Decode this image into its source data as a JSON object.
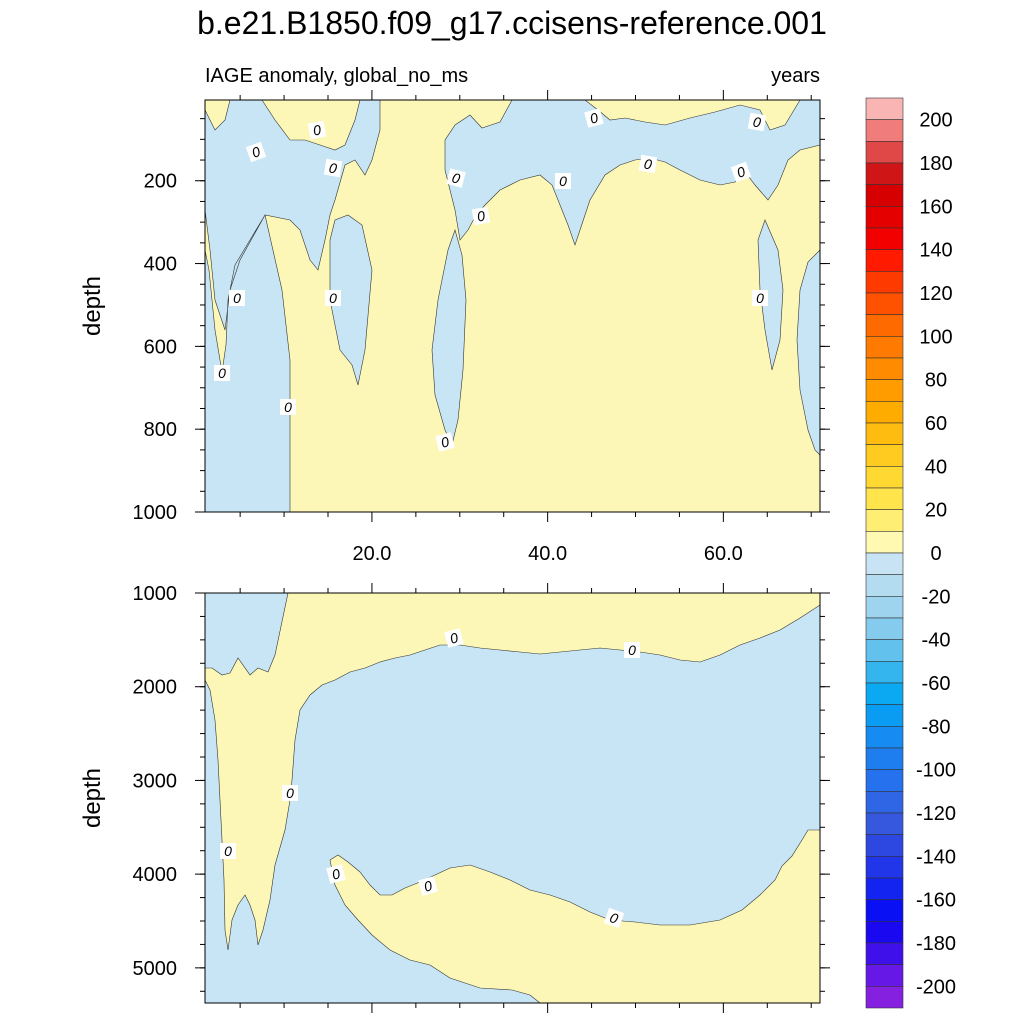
{
  "chart_data": {
    "type": "heatmap",
    "title": "b.e21.B1850.f09_g17.ccisens-reference.001",
    "subtitle_left": "IAGE anomaly, global_no_ms",
    "subtitle_right": "years",
    "ylabel": "depth",
    "x_axis": {
      "ticks": [
        "20.0",
        "40.0",
        "60.0"
      ],
      "tick_values": [
        20,
        40,
        60
      ],
      "xlim": [
        1,
        71
      ]
    },
    "panels": [
      {
        "name": "upper",
        "yticks": [
          "200",
          "400",
          "600",
          "800",
          "1000"
        ],
        "ytick_values": [
          200,
          400,
          600,
          800,
          1000
        ],
        "ylim": [
          5,
          1000
        ],
        "contour_labels": [
          "0",
          "0",
          "0",
          "0",
          "0",
          "0",
          "0",
          "0",
          "0",
          "0",
          "0",
          "0",
          "0",
          "0",
          "0",
          "0"
        ]
      },
      {
        "name": "lower",
        "yticks": [
          "1000",
          "2000",
          "3000",
          "4000",
          "5000"
        ],
        "ytick_values": [
          1000,
          2000,
          3000,
          4000,
          5000
        ],
        "ylim": [
          1000,
          5375
        ],
        "contour_labels": [
          "0",
          "0",
          "0",
          "0",
          "0",
          "0",
          "0",
          "0"
        ]
      }
    ],
    "colorbar": {
      "labels": [
        "200",
        "180",
        "160",
        "140",
        "120",
        "100",
        "80",
        "60",
        "40",
        "20",
        "0",
        "-20",
        "-40",
        "-60",
        "-80",
        "-100",
        "-120",
        "-140",
        "-160",
        "-180",
        "-200"
      ],
      "levels_high_to_low": [
        210,
        200,
        190,
        180,
        170,
        160,
        150,
        140,
        130,
        120,
        110,
        100,
        90,
        80,
        70,
        60,
        50,
        40,
        30,
        20,
        10,
        0,
        -10,
        -20,
        -30,
        -40,
        -50,
        -60,
        -70,
        -80,
        -90,
        -100,
        -110,
        -120,
        -130,
        -140,
        -150,
        -160,
        -170,
        -180,
        -190,
        -200,
        -210
      ],
      "colors": [
        "#f9b4b4",
        "#f07c7c",
        "#e04848",
        "#cf1515",
        "#d60000",
        "#e50000",
        "#f20000",
        "#ff1a00",
        "#ff3a00",
        "#ff5200",
        "#ff6a00",
        "#ff7a00",
        "#ff8c00",
        "#ff9c00",
        "#ffac00",
        "#ffbc10",
        "#ffcb20",
        "#ffd832",
        "#ffe44c",
        "#ffee74",
        "#fff9b2",
        "#c8e4f4",
        "#b4dcf0",
        "#9ed4ee",
        "#84cbee",
        "#63c1ee",
        "#35b5ee",
        "#0aa9f2",
        "#0a9cf2",
        "#168cf2",
        "#1e7ef0",
        "#2672ee",
        "#2e66e6",
        "#3658de",
        "#2c48e0",
        "#2036e8",
        "#1424f0",
        "#0a10f4",
        "#1a08f0",
        "#4010ea",
        "#6618e6",
        "#8620e0"
      ]
    },
    "fill_colors": {
      "positive": "#fcf7b6",
      "negative": "#c7e5f5"
    }
  }
}
